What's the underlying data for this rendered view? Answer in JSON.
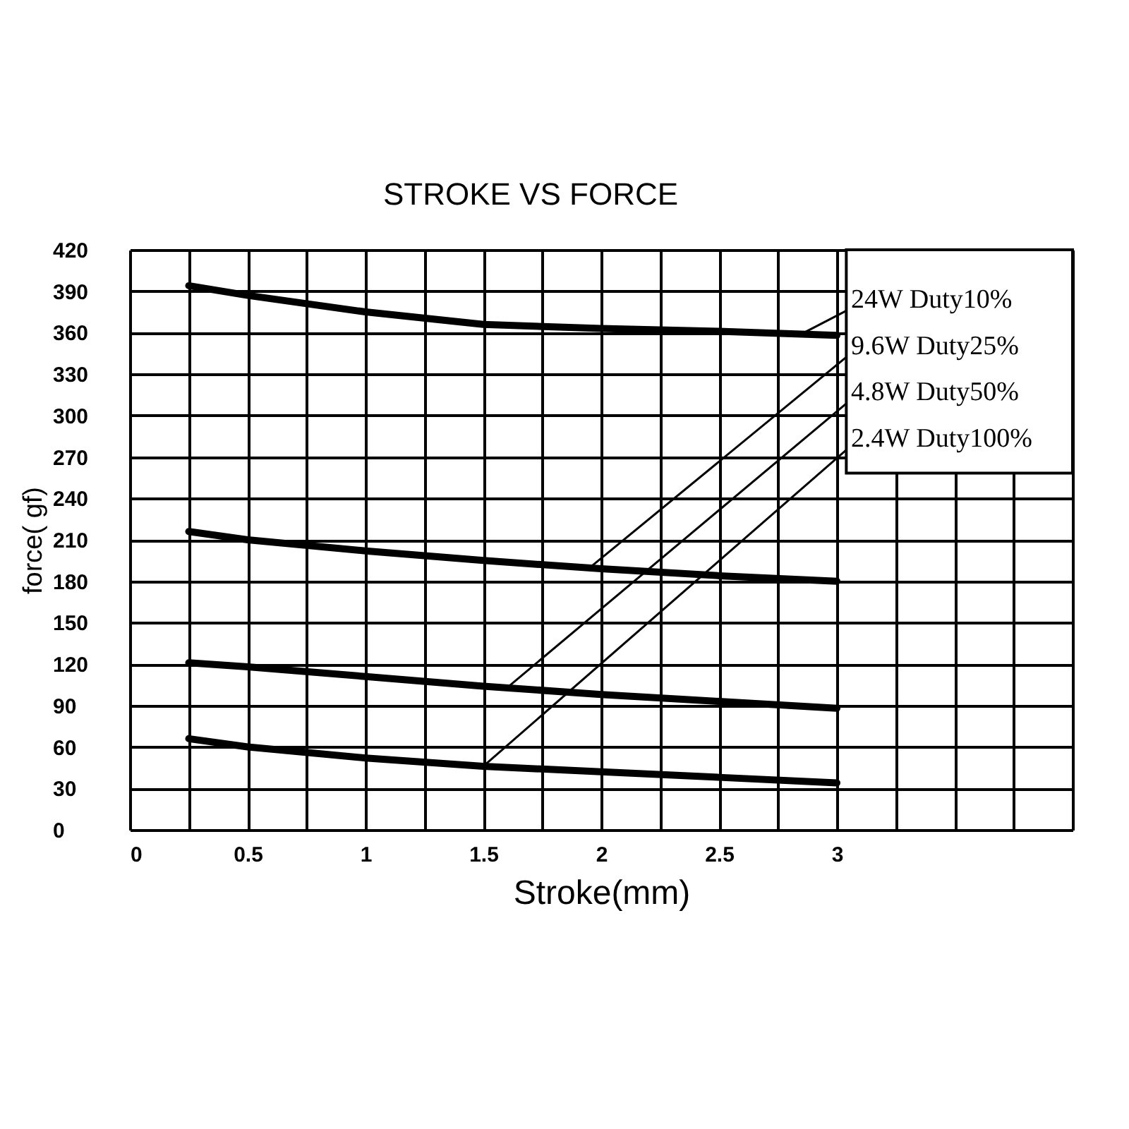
{
  "chart_data": {
    "type": "line",
    "title": "STROKE VS FORCE",
    "xlabel": "Stroke(mm)",
    "ylabel": "force( gf)",
    "x": [
      0.25,
      0.5,
      1,
      1.5,
      2,
      2.5,
      3
    ],
    "series": [
      {
        "name": "24W  Duty10%",
        "color": "#000000",
        "values": [
          394,
          387,
          375,
          366,
          363,
          361,
          358
        ]
      },
      {
        "name": "9.6W Duty25%",
        "color": "#000000",
        "values": [
          216,
          210,
          202,
          195,
          189,
          184,
          180
        ]
      },
      {
        "name": "4.8W Duty50%",
        "color": "#000000",
        "values": [
          121,
          118,
          111,
          104,
          98,
          93,
          88
        ]
      },
      {
        "name": "2.4W Duty100%",
        "color": "#000000",
        "values": [
          66,
          60,
          52,
          46,
          42,
          38,
          34
        ]
      }
    ],
    "xlim": [
      0,
      4
    ],
    "xticks": [
      0,
      {
        "value": 0.25,
        "label": null
      },
      0.5,
      {
        "value": 0.75,
        "label": null
      },
      1,
      {
        "value": 1.25,
        "label": null
      },
      1.5,
      {
        "value": 1.75,
        "label": null
      },
      2,
      {
        "value": 2.25,
        "label": null
      },
      2.5,
      {
        "value": 2.75,
        "label": null
      },
      3,
      {
        "value": 3.25,
        "label": null
      },
      {
        "value": 3.5,
        "label": null
      },
      {
        "value": 3.75,
        "label": null
      },
      {
        "value": 4,
        "label": null
      }
    ],
    "ylim": [
      0,
      420
    ],
    "yticks": [
      0,
      30,
      60,
      90,
      120,
      150,
      180,
      210,
      240,
      270,
      300,
      330,
      360,
      390,
      420
    ],
    "grid": true,
    "legend": false,
    "marker": "none",
    "line_style": "solid"
  }
}
